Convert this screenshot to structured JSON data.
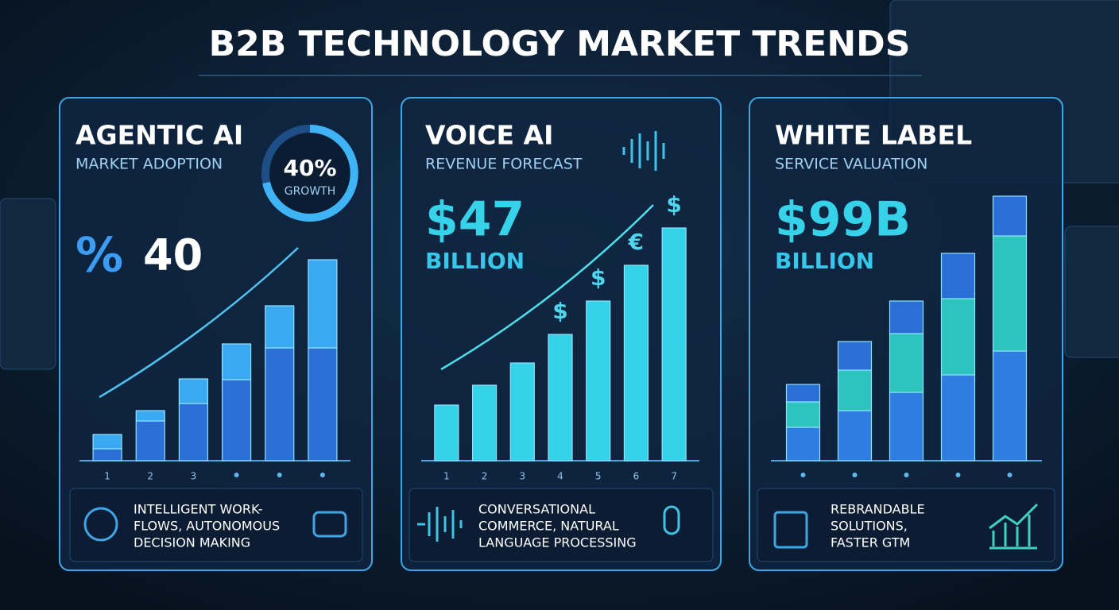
{
  "title": "B2B TECHNOLOGY MARKET TRENDS",
  "chart_data": [
    {
      "type": "bar",
      "title": "AGENTIC AI",
      "subtitle": "MARKET ADOPTION",
      "ring_value": "40%",
      "ring_label": "GROWTH",
      "headline_symbol": "%",
      "headline": "40",
      "categories": [
        "1",
        "2",
        "3",
        null,
        null,
        null
      ],
      "series": [
        {
          "color": "#2b6fd8",
          "values": [
            15,
            50,
            72,
            102,
            142,
            142
          ]
        },
        {
          "color": "#3aa9f2",
          "values": [
            18,
            13,
            31,
            45,
            53,
            111
          ]
        }
      ],
      "ylim": [
        0,
        300
      ],
      "footer": [
        "INTELLIGENT WORK-",
        "FLOWS, AUTONOMOUS",
        "DECISION MAKING"
      ]
    },
    {
      "type": "bar",
      "title": "VOICE AI",
      "subtitle": "REVENUE FORECAST",
      "headline": "$47",
      "headline_unit": "BILLION",
      "categories": [
        "1",
        "2",
        "3",
        "4",
        "5",
        "6",
        "7"
      ],
      "series": [
        {
          "color": "#34d3ea",
          "values": [
            70,
            95,
            123,
            159,
            201,
            246,
            293
          ]
        }
      ],
      "annotations": [
        "$",
        "$",
        "€",
        "$"
      ],
      "ylim": [
        0,
        300
      ],
      "footer": [
        "CONVERSATIONAL",
        "COMMERCE, NATURAL",
        "LANGUAGE PROCESSING"
      ]
    },
    {
      "type": "bar",
      "title": "WHITE LABEL",
      "subtitle": "SERVICE VALUATION",
      "headline": "$99B",
      "headline_unit": "BILLION",
      "categories": [
        null,
        null,
        null,
        null,
        null
      ],
      "series": [
        {
          "color": "#2f7de2",
          "values": [
            42,
            63,
            86,
            108,
            138
          ]
        },
        {
          "color": "#2cc4bd",
          "values": [
            32,
            51,
            74,
            96,
            145
          ]
        },
        {
          "color": "#2a6fd6",
          "values": [
            22,
            36,
            41,
            57,
            50
          ]
        }
      ],
      "ylim": [
        0,
        300
      ],
      "footer": [
        "REBRANDABLE",
        "SOLUTIONS,",
        "FASTER GTM"
      ]
    }
  ]
}
